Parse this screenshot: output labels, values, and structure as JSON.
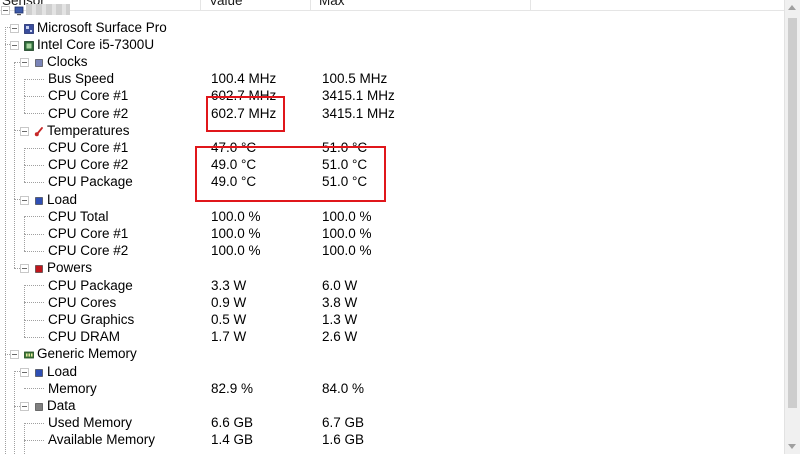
{
  "header": {
    "col_sensor": "Sensor",
    "col_value": "Value",
    "col_max": "Max"
  },
  "tree": [
    {
      "type": "root",
      "label": "",
      "icon": "computer-icon"
    },
    {
      "type": "hardware",
      "label": "Microsoft Surface Pro",
      "icon": "mainboard-icon"
    },
    {
      "type": "hardware",
      "label": "Intel Core i5-7300U",
      "icon": "cpu-chip-icon"
    },
    {
      "type": "group",
      "label": "Clocks",
      "icon": "clock-icon",
      "color": "#7a84b8"
    },
    {
      "type": "sensor",
      "label": "Bus Speed",
      "value": "100.4 MHz",
      "max": "100.5 MHz"
    },
    {
      "type": "sensor",
      "label": "CPU Core #1",
      "value": "602.7 MHz",
      "max": "3415.1 MHz"
    },
    {
      "type": "sensor",
      "label": "CPU Core #2",
      "value": "602.7 MHz",
      "max": "3415.1 MHz"
    },
    {
      "type": "group",
      "label": "Temperatures",
      "icon": "thermometer-icon",
      "color": "#c62828"
    },
    {
      "type": "sensor",
      "label": "CPU Core #1",
      "value": "47.0 °C",
      "max": "51.0 °C"
    },
    {
      "type": "sensor",
      "label": "CPU Core #2",
      "value": "49.0 °C",
      "max": "51.0 °C"
    },
    {
      "type": "sensor",
      "label": "CPU Package",
      "value": "49.0 °C",
      "max": "51.0 °C"
    },
    {
      "type": "group",
      "label": "Load",
      "icon": "load-icon",
      "color": "#2f4fb5"
    },
    {
      "type": "sensor",
      "label": "CPU Total",
      "value": "100.0 %",
      "max": "100.0 %"
    },
    {
      "type": "sensor",
      "label": "CPU Core #1",
      "value": "100.0 %",
      "max": "100.0 %"
    },
    {
      "type": "sensor",
      "label": "CPU Core #2",
      "value": "100.0 %",
      "max": "100.0 %"
    },
    {
      "type": "group",
      "label": "Powers",
      "icon": "power-icon",
      "color": "#c0161c"
    },
    {
      "type": "sensor",
      "label": "CPU Package",
      "value": "3.3 W",
      "max": "6.0 W"
    },
    {
      "type": "sensor",
      "label": "CPU Cores",
      "value": "0.9 W",
      "max": "3.8 W"
    },
    {
      "type": "sensor",
      "label": "CPU Graphics",
      "value": "0.5 W",
      "max": "1.3 W"
    },
    {
      "type": "sensor",
      "label": "CPU DRAM",
      "value": "1.7 W",
      "max": "2.6 W"
    },
    {
      "type": "hardware",
      "label": "Generic Memory",
      "icon": "memory-icon"
    },
    {
      "type": "group",
      "label": "Load",
      "icon": "load-icon",
      "color": "#2f4fb5"
    },
    {
      "type": "sensor",
      "label": "Memory",
      "value": "82.9 %",
      "max": "84.0 %"
    },
    {
      "type": "group",
      "label": "Data",
      "icon": "data-icon",
      "color": "#808080"
    },
    {
      "type": "sensor",
      "label": "Used Memory",
      "value": "6.6 GB",
      "max": "6.7 GB"
    },
    {
      "type": "sensor",
      "label": "Available Memory",
      "value": "1.4 GB",
      "max": "1.6 GB"
    }
  ],
  "highlight_color": "#e0161b"
}
